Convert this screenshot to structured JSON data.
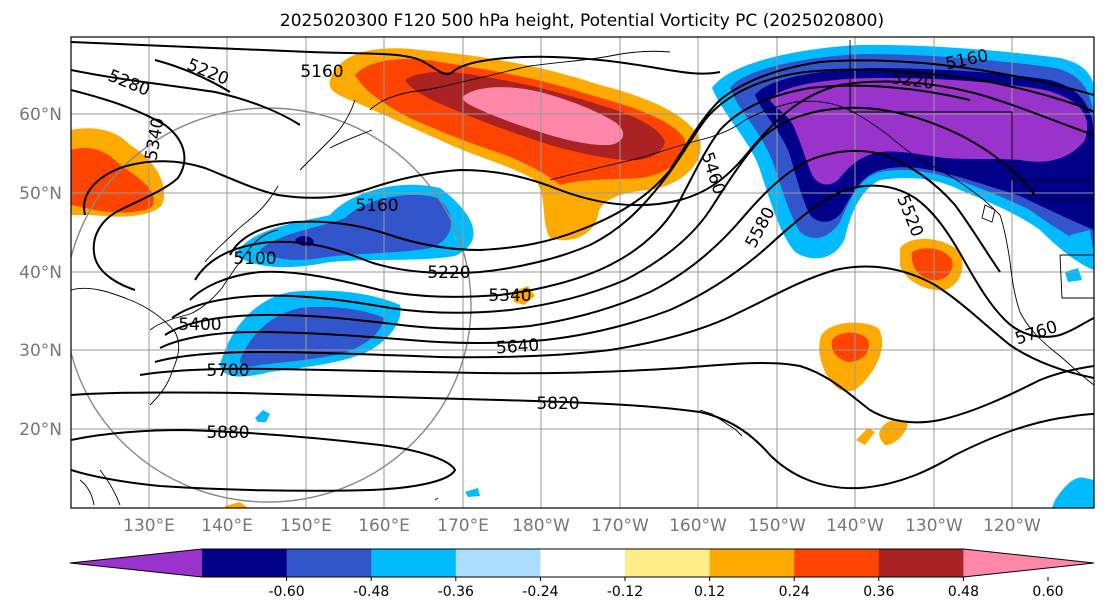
{
  "title": "2025020300 F120 500 hPa height, Potential Vorticity PC (2025020800)",
  "lat_ticks": [
    "20°N",
    "30°N",
    "40°N",
    "50°N",
    "60°N"
  ],
  "lon_ticks": [
    "130°E",
    "140°E",
    "150°E",
    "160°E",
    "170°E",
    "180°W",
    "170°W",
    "160°W",
    "150°W",
    "140°W",
    "130°W",
    "120°W"
  ],
  "colorbar": {
    "colors": [
      "#9933cc",
      "#000088",
      "#3355cc",
      "#00bbff",
      "#aaddff",
      "#ffffff",
      "#ffee88",
      "#ffaa00",
      "#ff4400",
      "#aa2222",
      "#ff88aa"
    ],
    "labels": [
      "-0.60",
      "-0.48",
      "-0.36",
      "-0.24",
      "-0.12",
      "0.12",
      "0.24",
      "0.36",
      "0.48",
      "0.60"
    ]
  },
  "contour_labels": [
    "5280",
    "5220",
    "5160",
    "5340",
    "5160",
    "5220",
    "5160",
    "5460",
    "5100",
    "5220",
    "5340",
    "5580",
    "5520",
    "5400",
    "5640",
    "5700",
    "5760",
    "5820",
    "5880"
  ]
}
